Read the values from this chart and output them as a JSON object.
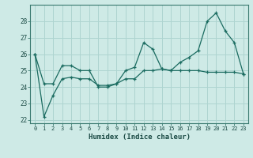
{
  "xlabel": "Humidex (Indice chaleur)",
  "ylabel": "",
  "background_color": "#ceeae6",
  "line_color": "#1a6b60",
  "grid_color": "#aed4d0",
  "ylim": [
    21.8,
    29.0
  ],
  "xlim": [
    -0.5,
    23.5
  ],
  "yticks": [
    22,
    23,
    24,
    25,
    26,
    27,
    28
  ],
  "xticks": [
    0,
    1,
    2,
    3,
    4,
    5,
    6,
    7,
    8,
    9,
    10,
    11,
    12,
    13,
    14,
    15,
    16,
    17,
    18,
    19,
    20,
    21,
    22,
    23
  ],
  "line1_x": [
    0,
    1,
    2,
    3,
    4,
    5,
    6,
    7,
    8,
    9,
    10,
    11,
    12,
    13,
    14,
    15,
    16,
    17,
    18,
    19,
    20,
    21,
    22,
    23
  ],
  "line1_y": [
    26.0,
    24.2,
    24.2,
    25.3,
    25.3,
    25.0,
    25.0,
    24.0,
    24.0,
    24.2,
    25.0,
    25.2,
    26.7,
    26.3,
    25.1,
    25.0,
    25.5,
    25.8,
    26.2,
    28.0,
    28.5,
    27.4,
    26.7,
    24.8
  ],
  "line2_x": [
    0,
    1,
    2,
    3,
    4,
    5,
    6,
    7,
    8,
    9,
    10,
    11,
    12,
    13,
    14,
    15,
    16,
    17,
    18,
    19,
    20,
    21,
    22,
    23
  ],
  "line2_y": [
    26.0,
    22.2,
    23.5,
    24.5,
    24.6,
    24.5,
    24.5,
    24.1,
    24.1,
    24.2,
    24.5,
    24.5,
    25.0,
    25.0,
    25.1,
    25.0,
    25.0,
    25.0,
    25.0,
    24.9,
    24.9,
    24.9,
    24.9,
    24.8
  ]
}
